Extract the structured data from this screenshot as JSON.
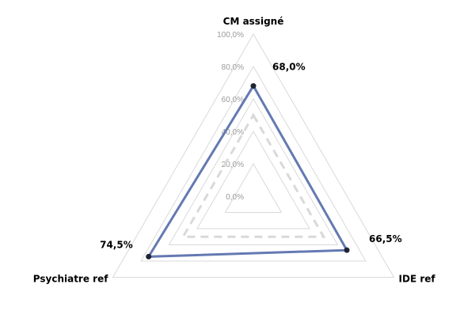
{
  "chart_data": {
    "type": "radar",
    "axes": [
      "CM assigné",
      "IDE ref",
      "Psychiatre ref"
    ],
    "tick_labels": [
      "0,0%",
      "20,0%",
      "40,0%",
      "60,0%",
      "80,0%",
      "100,0%"
    ],
    "range": [
      0,
      100
    ],
    "grid": true,
    "series": [
      {
        "values": [
          68.0,
          66.5,
          74.5
        ],
        "value_labels": [
          "68,0%",
          "66,5%",
          "74,5%"
        ],
        "color": "#6479b2",
        "marker_color": "#1f2433",
        "style": "solid"
      },
      {
        "values": [
          50,
          50,
          50
        ],
        "color": "#d9d9d9",
        "style": "dashed"
      }
    ]
  }
}
